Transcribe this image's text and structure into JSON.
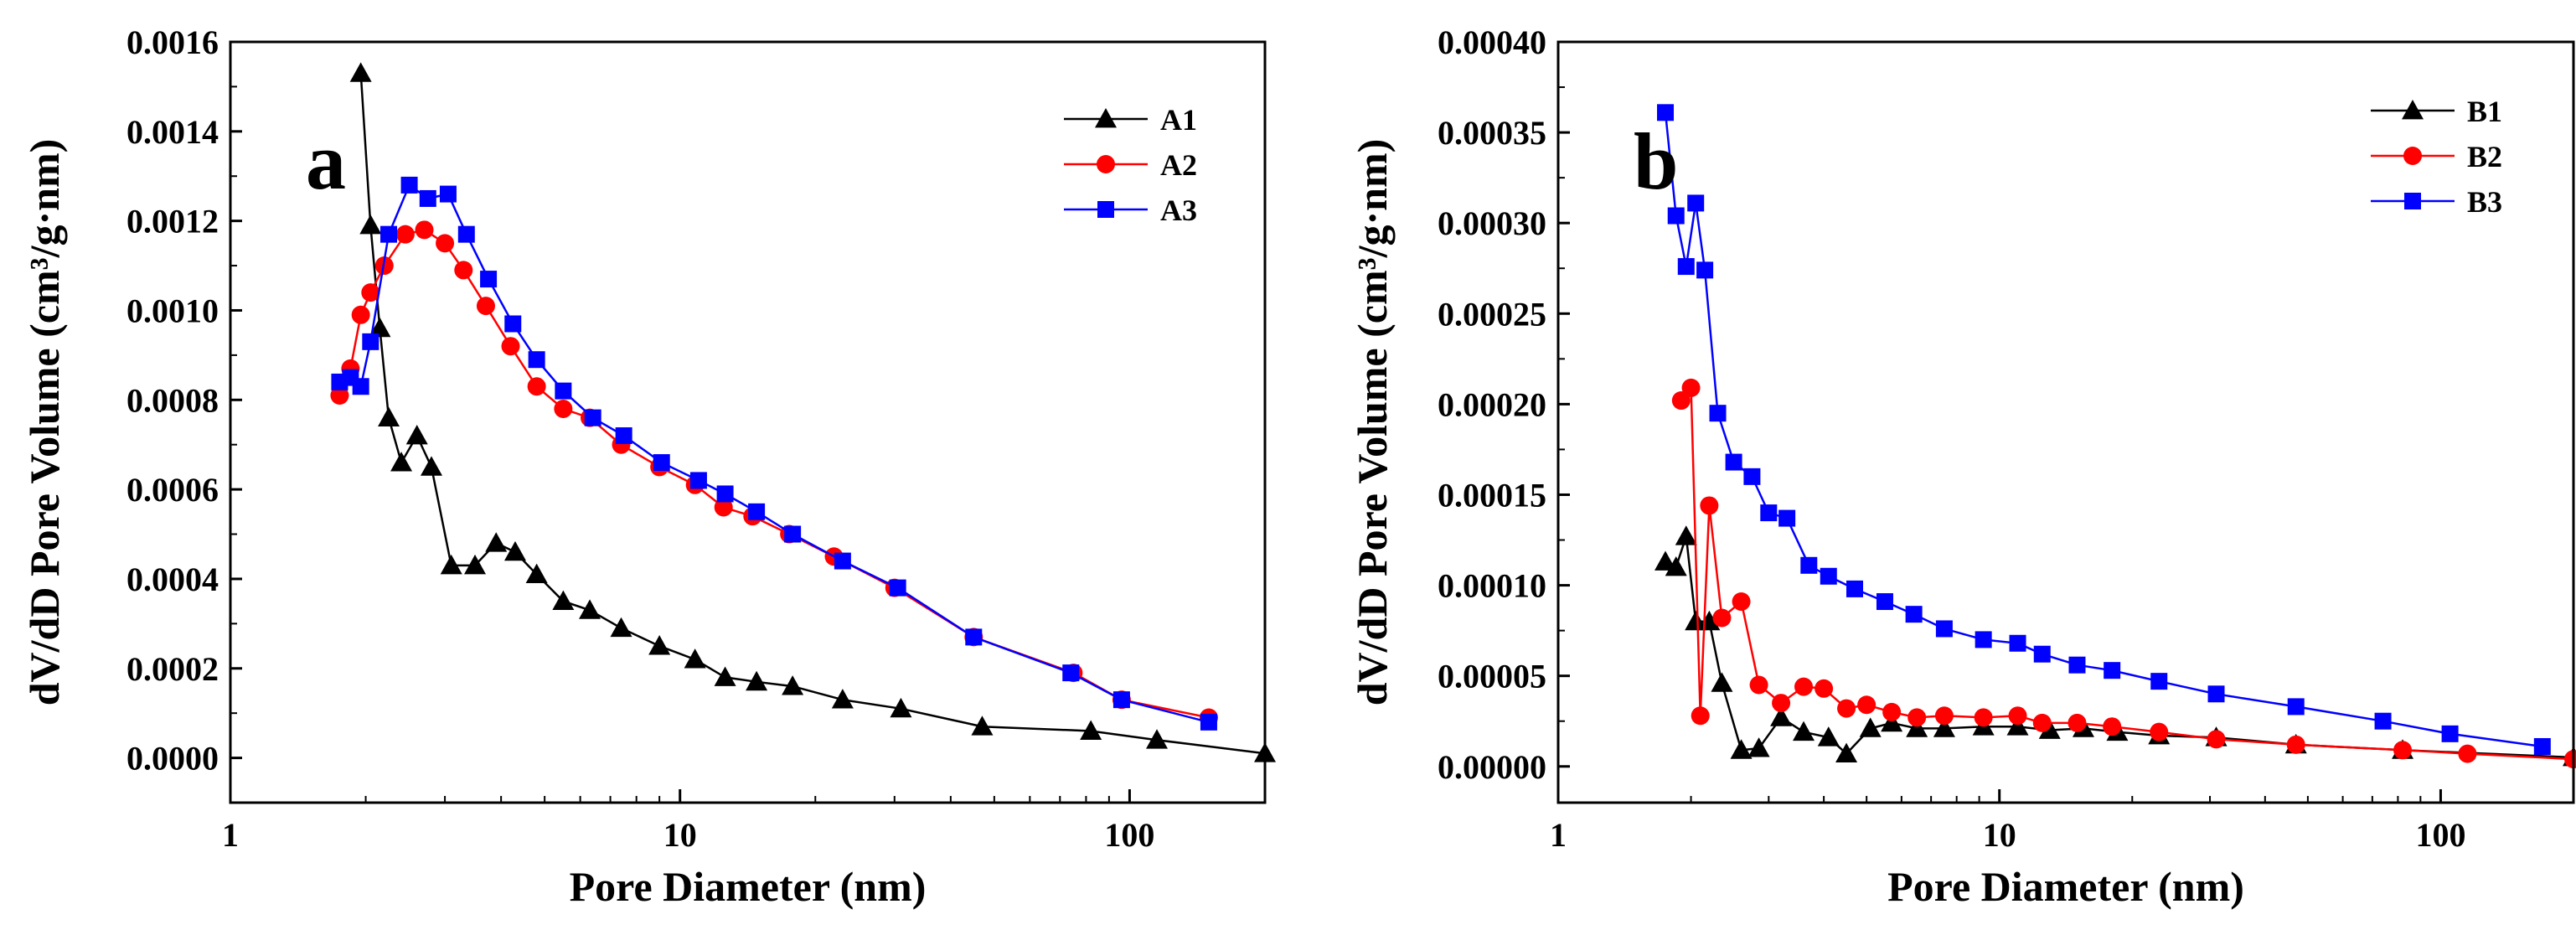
{
  "chart_data": [
    {
      "type": "line",
      "panel_label": "a",
      "xlabel": "Pore Diameter (nm)",
      "ylabel": "dV/dD Pore Volume (cm³/g·nm)",
      "xscale": "log",
      "xlim": [
        1,
        200
      ],
      "ylim": [
        -0.0001,
        0.0016
      ],
      "x_ticks": [
        1,
        10,
        100
      ],
      "x_tick_labels": [
        "1",
        "10",
        "100"
      ],
      "y_ticks": [
        0,
        0.0002,
        0.0004,
        0.0006,
        0.0008,
        0.001,
        0.0012,
        0.0014,
        0.0016
      ],
      "y_tick_labels": [
        "0.0000",
        "0.0002",
        "0.0004",
        "0.0006",
        "0.0008",
        "0.0010",
        "0.0012",
        "0.0014",
        "0.0016"
      ],
      "legend_position": "top-right",
      "grid": false,
      "series": [
        {
          "name": "A1",
          "color": "#000000",
          "marker": "triangle",
          "x": [
            1.95,
            2.05,
            2.15,
            2.25,
            2.4,
            2.6,
            2.8,
            3.1,
            3.5,
            3.9,
            4.3,
            4.8,
            5.5,
            6.3,
            7.4,
            9.0,
            10.8,
            12.6,
            14.8,
            17.8,
            23.0,
            31.0,
            47.0,
            82.0,
            115.0,
            200.0
          ],
          "y": [
            0.00153,
            0.00119,
            0.00096,
            0.00076,
            0.00066,
            0.00072,
            0.00065,
            0.00043,
            0.00043,
            0.00048,
            0.00046,
            0.00041,
            0.00035,
            0.00033,
            0.00029,
            0.00025,
            0.00022,
            0.00018,
            0.00017,
            0.00016,
            0.00013,
            0.00011,
            7e-05,
            6e-05,
            4e-05,
            1e-05
          ]
        },
        {
          "name": "A2",
          "color": "#ff0000",
          "marker": "circle",
          "x": [
            1.75,
            1.85,
            1.95,
            2.05,
            2.2,
            2.45,
            2.7,
            3.0,
            3.3,
            3.7,
            4.2,
            4.8,
            5.5,
            6.3,
            7.4,
            9.0,
            10.8,
            12.5,
            14.5,
            17.5,
            22.0,
            30.0,
            45.0,
            75.0,
            96.0,
            150.0
          ],
          "y": [
            0.00081,
            0.00087,
            0.00099,
            0.00104,
            0.0011,
            0.00117,
            0.00118,
            0.00115,
            0.00109,
            0.00101,
            0.00092,
            0.00083,
            0.00078,
            0.00076,
            0.0007,
            0.00065,
            0.00061,
            0.00056,
            0.00054,
            0.0005,
            0.00045,
            0.00038,
            0.00027,
            0.00019,
            0.00013,
            9e-05
          ]
        },
        {
          "name": "A3",
          "color": "#0000ff",
          "marker": "square",
          "x": [
            1.75,
            1.85,
            1.95,
            2.05,
            2.25,
            2.5,
            2.75,
            3.05,
            3.35,
            3.75,
            4.25,
            4.8,
            5.5,
            6.4,
            7.5,
            9.1,
            11.0,
            12.6,
            14.8,
            17.8,
            23.0,
            30.5,
            45.0,
            74.0,
            96.0,
            150.0
          ],
          "y": [
            0.00084,
            0.00085,
            0.00083,
            0.00093,
            0.00117,
            0.00128,
            0.00125,
            0.00126,
            0.00117,
            0.00107,
            0.00097,
            0.00089,
            0.00082,
            0.00076,
            0.00072,
            0.00066,
            0.00062,
            0.00059,
            0.00055,
            0.0005,
            0.00044,
            0.00038,
            0.00027,
            0.00019,
            0.00013,
            8e-05
          ]
        }
      ]
    },
    {
      "type": "line",
      "panel_label": "b",
      "xlabel": "Pore Diameter (nm)",
      "ylabel": "dV/dD Pore Volume (cm³/g·nm)",
      "xscale": "log",
      "xlim": [
        1,
        200
      ],
      "ylim": [
        -2e-05,
        0.0004
      ],
      "x_ticks": [
        1,
        10,
        100
      ],
      "x_tick_labels": [
        "1",
        "10",
        "100"
      ],
      "y_ticks": [
        0,
        5e-05,
        0.0001,
        0.00015,
        0.0002,
        0.00025,
        0.0003,
        0.00035,
        0.0004
      ],
      "y_tick_labels": [
        "0.00000",
        "0.00005",
        "0.00010",
        "0.00015",
        "0.00020",
        "0.00025",
        "0.00030",
        "0.00035",
        "0.00040"
      ],
      "legend_position": "top-right",
      "grid": false,
      "series": [
        {
          "name": "B1",
          "color": "#000000",
          "marker": "triangle",
          "x": [
            1.75,
            1.85,
            1.95,
            2.05,
            2.2,
            2.35,
            2.6,
            2.85,
            3.2,
            3.6,
            4.1,
            4.5,
            5.1,
            5.7,
            6.5,
            7.5,
            9.2,
            11.0,
            13.0,
            15.5,
            18.5,
            23.0,
            31.0,
            47.0,
            82.0,
            200.0
          ],
          "y": [
            0.000113,
            0.00011,
            0.000127,
            8e-05,
            8e-05,
            4.6e-05,
            9e-06,
            1e-05,
            2.7e-05,
            1.9e-05,
            1.6e-05,
            7e-06,
            2.1e-05,
            2.4e-05,
            2.1e-05,
            2.1e-05,
            2.2e-05,
            2.2e-05,
            2e-05,
            2.1e-05,
            1.9e-05,
            1.7e-05,
            1.6e-05,
            1.2e-05,
            9e-06,
            5e-06
          ]
        },
        {
          "name": "B2",
          "color": "#ff0000",
          "marker": "circle",
          "x": [
            1.9,
            2.0,
            2.1,
            2.2,
            2.35,
            2.6,
            2.85,
            3.2,
            3.6,
            4.0,
            4.5,
            5.0,
            5.7,
            6.5,
            7.5,
            9.2,
            11.0,
            12.5,
            15.0,
            18.0,
            23.0,
            31.0,
            47.0,
            82.0,
            115.0,
            200.0
          ],
          "y": [
            0.000202,
            0.000209,
            2.8e-05,
            0.000144,
            8.2e-05,
            9.1e-05,
            4.5e-05,
            3.5e-05,
            4.4e-05,
            4.3e-05,
            3.2e-05,
            3.4e-05,
            3e-05,
            2.7e-05,
            2.8e-05,
            2.7e-05,
            2.8e-05,
            2.4e-05,
            2.4e-05,
            2.2e-05,
            1.9e-05,
            1.5e-05,
            1.2e-05,
            9e-06,
            7e-06,
            4e-06
          ]
        },
        {
          "name": "B3",
          "color": "#0000ff",
          "marker": "square",
          "x": [
            1.75,
            1.85,
            1.95,
            2.05,
            2.15,
            2.3,
            2.5,
            2.75,
            3.0,
            3.3,
            3.7,
            4.1,
            4.7,
            5.5,
            6.4,
            7.5,
            9.2,
            11.0,
            12.5,
            15.0,
            18.0,
            23.0,
            31.0,
            47.0,
            74.0,
            105.0,
            170.0
          ],
          "y": [
            0.000361,
            0.000304,
            0.000276,
            0.000311,
            0.000274,
            0.000195,
            0.000168,
            0.00016,
            0.00014,
            0.000137,
            0.000111,
            0.000105,
            9.8e-05,
            9.1e-05,
            8.4e-05,
            7.6e-05,
            7e-05,
            6.8e-05,
            6.2e-05,
            5.6e-05,
            5.3e-05,
            4.7e-05,
            4e-05,
            3.3e-05,
            2.5e-05,
            1.8e-05,
            1.1e-05
          ]
        }
      ]
    }
  ]
}
